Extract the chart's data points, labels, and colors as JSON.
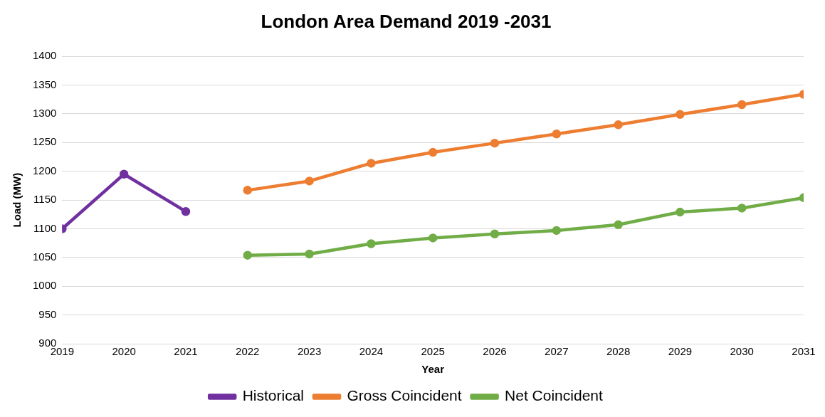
{
  "chart_data": {
    "type": "line",
    "title": "London Area Demand 2019 -2031",
    "xlabel": "Year",
    "ylabel": "Load (MW)",
    "xlim": [
      2019,
      2031
    ],
    "xticks": [
      2019,
      2020,
      2021,
      2022,
      2023,
      2024,
      2025,
      2026,
      2027,
      2028,
      2029,
      2030,
      2031
    ],
    "ylim": [
      900,
      1400
    ],
    "yticks": [
      900,
      950,
      1000,
      1050,
      1100,
      1150,
      1200,
      1250,
      1300,
      1350,
      1400
    ],
    "grid": "y",
    "legend": "bottom",
    "marker": "circle",
    "line_style": "solid",
    "series": [
      {
        "name": "Historical",
        "color": "#7030a0",
        "x": [
          2019,
          2020,
          2021
        ],
        "values": [
          1100,
          1195,
          1130
        ]
      },
      {
        "name": "Gross Coincident",
        "color": "#ed7d31",
        "x": [
          2022,
          2023,
          2024,
          2025,
          2026,
          2027,
          2028,
          2029,
          2030,
          2031
        ],
        "values": [
          1167,
          1183,
          1214,
          1233,
          1249,
          1265,
          1281,
          1299,
          1316,
          1334
        ]
      },
      {
        "name": "Net Coincident",
        "color": "#70ad47",
        "x": [
          2022,
          2023,
          2024,
          2025,
          2026,
          2027,
          2028,
          2029,
          2030,
          2031
        ],
        "values": [
          1054,
          1056,
          1074,
          1084,
          1091,
          1097,
          1107,
          1129,
          1136,
          1154
        ]
      }
    ]
  }
}
